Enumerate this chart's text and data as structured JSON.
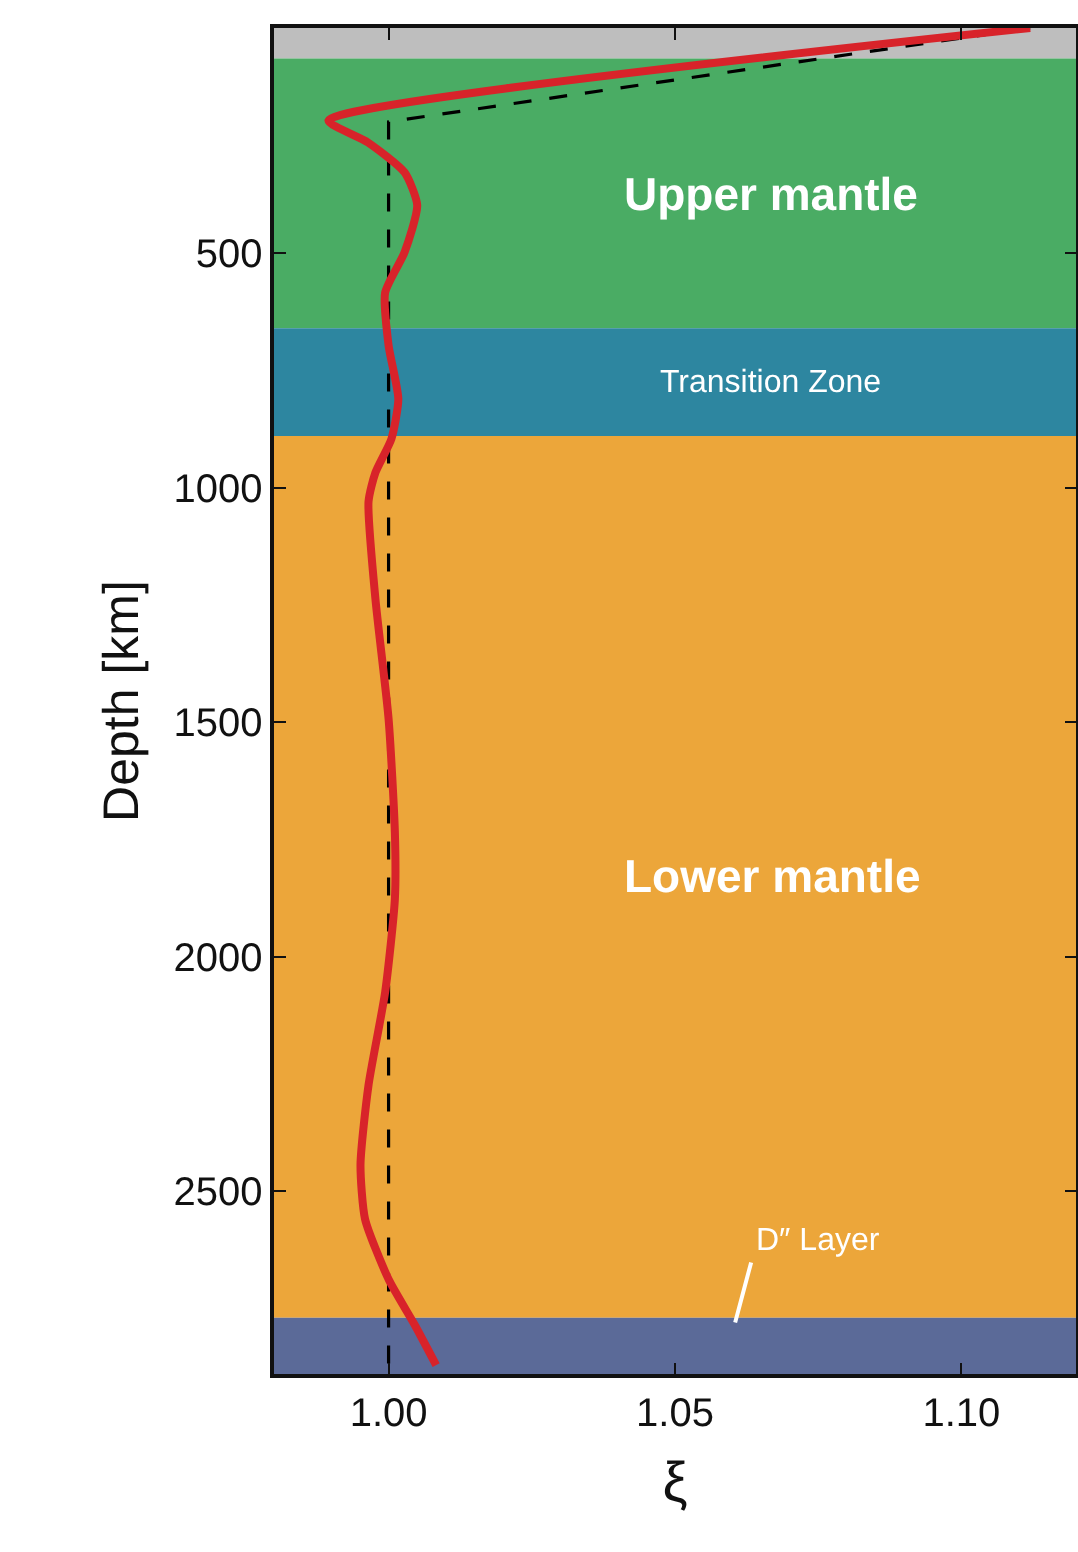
{
  "chart_data": {
    "type": "line",
    "xlabel": "ξ",
    "ylabel": "Depth [km]",
    "xlim": [
      0.98,
      1.12
    ],
    "xticks": [
      {
        "value": 1.0,
        "label": "1.00"
      },
      {
        "value": 1.05,
        "label": "1.05"
      },
      {
        "value": 1.1,
        "label": "1.10"
      }
    ],
    "ylim": [
      2890,
      20
    ],
    "yticks": [
      500,
      1000,
      1500,
      2000,
      2500
    ],
    "grid": false,
    "marker": "none",
    "bands": [
      {
        "axis": "y",
        "from": 20,
        "to": 85,
        "color": "#bebebe"
      },
      {
        "axis": "y",
        "from": 85,
        "to": 660,
        "label": "Upper mantle",
        "color": "#4aac64"
      },
      {
        "axis": "y",
        "from": 660,
        "to": 890,
        "label": "Transition Zone",
        "color": "#2d86a0"
      },
      {
        "axis": "y",
        "from": 890,
        "to": 2770,
        "label": "Lower mantle",
        "color": "#eca63a"
      },
      {
        "axis": "y",
        "from": 2770,
        "to": 2890,
        "label": "D″ Layer",
        "color": "#5b6a98"
      }
    ],
    "series": [
      {
        "color": "#000000",
        "line_style": "dashed",
        "x": [
          1.112,
          1.0,
          1.0
        ],
        "values": [
          20,
          220,
          2890
        ]
      },
      {
        "color": "#d8232a",
        "line_style": "solid",
        "x": [
          1.112,
          0.9895,
          0.9964,
          1.0028,
          1.005,
          1.0028,
          0.9994,
          1.0,
          1.0017,
          1.0005,
          0.9977,
          0.9965,
          0.9977,
          1.0,
          1.0011,
          1.0011,
          0.9994,
          0.9965,
          0.9951,
          0.9959,
          1.0,
          1.0046,
          1.0083
        ],
        "values": [
          20,
          217,
          264,
          328,
          398,
          498,
          584,
          697,
          811,
          896,
          968,
          1030,
          1237,
          1493,
          1735,
          1877,
          2076,
          2274,
          2444,
          2560,
          2688,
          2786,
          2871
        ]
      }
    ]
  }
}
